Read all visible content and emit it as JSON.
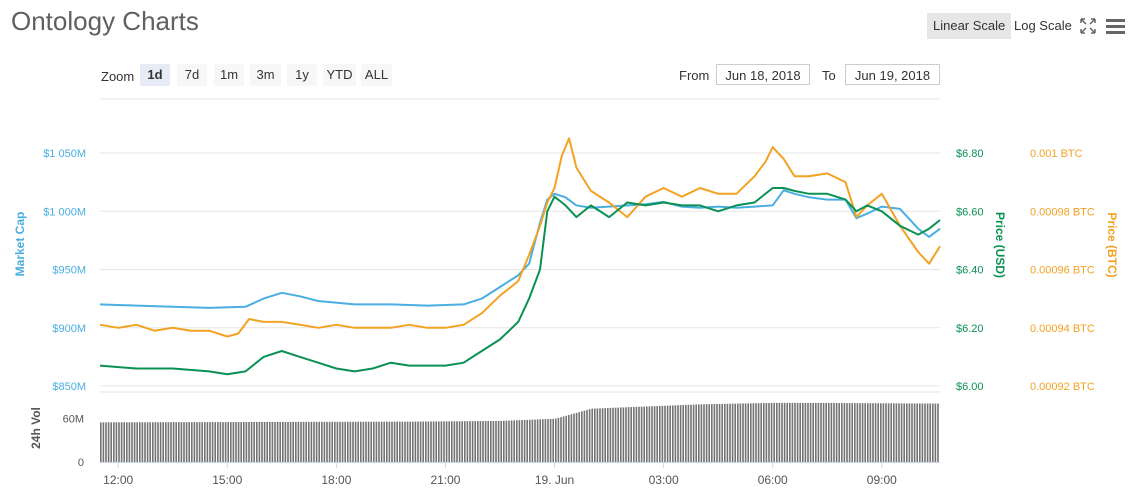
{
  "header": {
    "title": "Ontology Charts",
    "linear_scale_label": "Linear Scale",
    "log_scale_label": "Log Scale",
    "fullscreen_icon": "expand-icon",
    "menu_icon": "hamburger-icon"
  },
  "zoom": {
    "label": "Zoom",
    "options": [
      "1d",
      "7d",
      "1m",
      "3m",
      "1y",
      "YTD",
      "ALL"
    ],
    "selected": "1d"
  },
  "range": {
    "from_label": "From",
    "from_value": "Jun 18, 2018",
    "to_label": "To",
    "to_value": "Jun 19, 2018"
  },
  "colors": {
    "market_cap": "#4aaee2",
    "price_usd": "#0b9153",
    "price_btc": "#f3a224",
    "volume": "#737373",
    "grid": "#e6e6e6"
  },
  "chart_data": {
    "type": "line",
    "x_ticks": [
      "12:00",
      "15:00",
      "18:00",
      "21:00",
      "19. Jun",
      "03:00",
      "06:00",
      "09:00"
    ],
    "x_tick_hours": [
      12,
      15,
      18,
      21,
      24,
      27,
      30,
      33
    ],
    "x_range_hours": [
      11.5,
      34.6
    ],
    "y_axes": {
      "market_cap": {
        "title": "Market Cap",
        "ticks": [
          "$850M",
          "$900M",
          "$950M",
          "$1 000M",
          "$1 050M"
        ],
        "tick_values": [
          850,
          900,
          950,
          1000,
          1050
        ],
        "range": [
          850,
          1050
        ]
      },
      "price_usd": {
        "title": "Price (USD)",
        "ticks": [
          "$6.00",
          "$6.20",
          "$6.40",
          "$6.60",
          "$6.80"
        ],
        "tick_values": [
          6.0,
          6.2,
          6.4,
          6.6,
          6.8
        ],
        "range": [
          6.0,
          6.8
        ]
      },
      "price_btc": {
        "title": "Price (BTC)",
        "ticks": [
          "0.00092 BTC",
          "0.00094 BTC",
          "0.00096 BTC",
          "0.00098 BTC",
          "0.001 BTC"
        ],
        "tick_values": [
          0.00092,
          0.00094,
          0.00096,
          0.00098,
          0.001
        ],
        "range": [
          0.00092,
          0.001
        ]
      },
      "volume": {
        "title": "24h Vol",
        "ticks": [
          "0",
          "60M"
        ],
        "tick_values": [
          0,
          60
        ],
        "range": [
          0,
          86
        ]
      }
    },
    "series": [
      {
        "name": "Market Cap",
        "axis": "market_cap",
        "hours": [
          11.5,
          12.5,
          13.5,
          14.5,
          15.5,
          16.0,
          16.5,
          17.0,
          17.5,
          18.5,
          19.5,
          20.5,
          21.5,
          22.0,
          22.5,
          23.0,
          23.3,
          23.6,
          23.8,
          24.0,
          24.3,
          24.6,
          25.0,
          25.5,
          26.0,
          26.5,
          27.0,
          27.5,
          28.0,
          28.5,
          29.0,
          29.5,
          30.0,
          30.3,
          30.6,
          31.0,
          31.5,
          32.0,
          32.3,
          32.6,
          33.0,
          33.5,
          34.0,
          34.3,
          34.6
        ],
        "values": [
          920,
          919,
          918,
          917,
          918,
          925,
          930,
          927,
          923,
          920,
          920,
          919,
          920,
          925,
          935,
          945,
          955,
          990,
          1010,
          1015,
          1012,
          1005,
          1003,
          1004,
          1005,
          1006,
          1008,
          1004,
          1003,
          1004,
          1003,
          1004,
          1005,
          1018,
          1015,
          1012,
          1010,
          1010,
          994,
          998,
          1004,
          1002,
          985,
          978,
          985
        ]
      },
      {
        "name": "Price (USD)",
        "axis": "price_usd",
        "hours": [
          11.5,
          12.5,
          13.5,
          14.5,
          15.0,
          15.5,
          16.0,
          16.5,
          17.0,
          17.5,
          18.0,
          18.5,
          19.0,
          19.5,
          20.0,
          20.5,
          21.0,
          21.5,
          22.0,
          22.5,
          23.0,
          23.3,
          23.6,
          23.8,
          24.0,
          24.3,
          24.6,
          25.0,
          25.5,
          26.0,
          26.5,
          27.0,
          27.5,
          28.0,
          28.5,
          29.0,
          29.5,
          30.0,
          30.3,
          30.6,
          31.0,
          31.5,
          32.0,
          32.3,
          32.6,
          33.0,
          33.5,
          34.0,
          34.3,
          34.6
        ],
        "values": [
          6.07,
          6.06,
          6.06,
          6.05,
          6.04,
          6.05,
          6.1,
          6.12,
          6.1,
          6.08,
          6.06,
          6.05,
          6.06,
          6.08,
          6.07,
          6.07,
          6.07,
          6.08,
          6.12,
          6.16,
          6.22,
          6.3,
          6.4,
          6.6,
          6.65,
          6.62,
          6.58,
          6.62,
          6.58,
          6.63,
          6.62,
          6.63,
          6.62,
          6.62,
          6.6,
          6.62,
          6.63,
          6.68,
          6.68,
          6.67,
          6.66,
          6.66,
          6.64,
          6.6,
          6.62,
          6.6,
          6.55,
          6.52,
          6.54,
          6.57
        ]
      },
      {
        "name": "Price (BTC)",
        "axis": "price_btc",
        "hours": [
          11.5,
          12.0,
          12.5,
          13.0,
          13.5,
          14.0,
          14.5,
          15.0,
          15.3,
          15.6,
          16.0,
          16.5,
          17.0,
          17.5,
          18.0,
          18.5,
          19.0,
          19.5,
          20.0,
          20.5,
          21.0,
          21.5,
          22.0,
          22.5,
          23.0,
          23.3,
          23.6,
          23.8,
          24.0,
          24.2,
          24.4,
          24.6,
          25.0,
          25.5,
          26.0,
          26.5,
          27.0,
          27.5,
          28.0,
          28.5,
          29.0,
          29.5,
          29.8,
          30.0,
          30.3,
          30.6,
          31.0,
          31.5,
          32.0,
          32.3,
          32.6,
          33.0,
          33.5,
          34.0,
          34.3,
          34.6
        ],
        "values": [
          0.000941,
          0.00094,
          0.000941,
          0.000939,
          0.00094,
          0.000939,
          0.000939,
          0.000937,
          0.000938,
          0.000943,
          0.000942,
          0.000942,
          0.000941,
          0.00094,
          0.000941,
          0.00094,
          0.00094,
          0.00094,
          0.000941,
          0.00094,
          0.00094,
          0.000941,
          0.000945,
          0.000951,
          0.000956,
          0.000965,
          0.000975,
          0.000983,
          0.000988,
          0.000999,
          0.001005,
          0.000995,
          0.000987,
          0.000983,
          0.000978,
          0.000985,
          0.000988,
          0.000985,
          0.000988,
          0.000986,
          0.000986,
          0.000992,
          0.000997,
          0.001002,
          0.000998,
          0.000992,
          0.000992,
          0.000993,
          0.00099,
          0.000978,
          0.000982,
          0.000986,
          0.000975,
          0.000966,
          0.000962,
          0.000968
        ]
      },
      {
        "name": "24h Vol",
        "axis": "volume",
        "type": "bar",
        "hours": [
          11.5,
          20.0,
          22.5,
          24.0,
          25.0,
          27.0,
          28.0,
          30.0,
          31.0,
          34.6
        ],
        "values": [
          55,
          56,
          57,
          60,
          74,
          78,
          80,
          82,
          82,
          81
        ]
      }
    ]
  }
}
